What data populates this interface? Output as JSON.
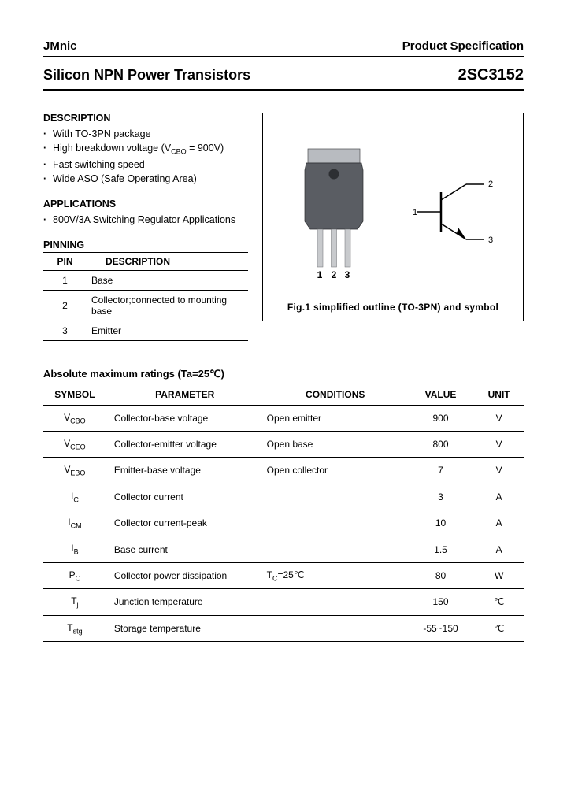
{
  "header": {
    "brand": "JMnic",
    "spec_label": "Product Specification"
  },
  "title": {
    "left": "Silicon NPN Power Transistors",
    "right": "2SC3152"
  },
  "description": {
    "heading": "DESCRIPTION",
    "items": [
      "With TO-3PN package",
      "High breakdown voltage (V_CBO = 900V)",
      "Fast switching speed",
      "Wide ASO (Safe Operating Area)"
    ]
  },
  "applications": {
    "heading": "APPLICATIONS",
    "items": [
      "800V/3A Switching Regulator Applications"
    ]
  },
  "pinning": {
    "heading": "PINNING",
    "col1": "PIN",
    "col2": "DESCRIPTION",
    "rows": [
      {
        "pin": "1",
        "desc": "Base"
      },
      {
        "pin": "2",
        "desc": "Collector;connected to mounting base"
      },
      {
        "pin": "3",
        "desc": "Emitter"
      }
    ]
  },
  "figure": {
    "caption": "Fig.1 simplified outline (TO-3PN) and symbol",
    "package_body_color": "#5a5d63",
    "package_tab_color": "#b8bbc0",
    "lead_color": "#c8cacd",
    "pin_labels": [
      "1",
      "2",
      "3"
    ],
    "symbol_labels": {
      "base": "1",
      "collector": "2",
      "emitter": "3"
    }
  },
  "ratings": {
    "heading": "Absolute maximum ratings (Ta=25℃)",
    "columns": [
      "SYMBOL",
      "PARAMETER",
      "CONDITIONS",
      "VALUE",
      "UNIT"
    ],
    "rows": [
      {
        "sym": "V",
        "sub": "CBO",
        "param": "Collector-base voltage",
        "cond": "Open emitter",
        "val": "900",
        "unit": "V"
      },
      {
        "sym": "V",
        "sub": "CEO",
        "param": "Collector-emitter voltage",
        "cond": "Open base",
        "val": "800",
        "unit": "V"
      },
      {
        "sym": "V",
        "sub": "EBO",
        "param": "Emitter-base voltage",
        "cond": "Open collector",
        "val": "7",
        "unit": "V"
      },
      {
        "sym": "I",
        "sub": "C",
        "param": "Collector current",
        "cond": "",
        "val": "3",
        "unit": "A"
      },
      {
        "sym": "I",
        "sub": "CM",
        "param": "Collector current-peak",
        "cond": "",
        "val": "10",
        "unit": "A"
      },
      {
        "sym": "I",
        "sub": "B",
        "param": "Base current",
        "cond": "",
        "val": "1.5",
        "unit": "A"
      },
      {
        "sym": "P",
        "sub": "C",
        "param": "Collector power dissipation",
        "cond": "T_C=25℃",
        "val": "80",
        "unit": "W"
      },
      {
        "sym": "T",
        "sub": "j",
        "param": "Junction temperature",
        "cond": "",
        "val": "150",
        "unit": "℃"
      },
      {
        "sym": "T",
        "sub": "stg",
        "param": "Storage temperature",
        "cond": "",
        "val": "-55~150",
        "unit": "℃"
      }
    ]
  }
}
